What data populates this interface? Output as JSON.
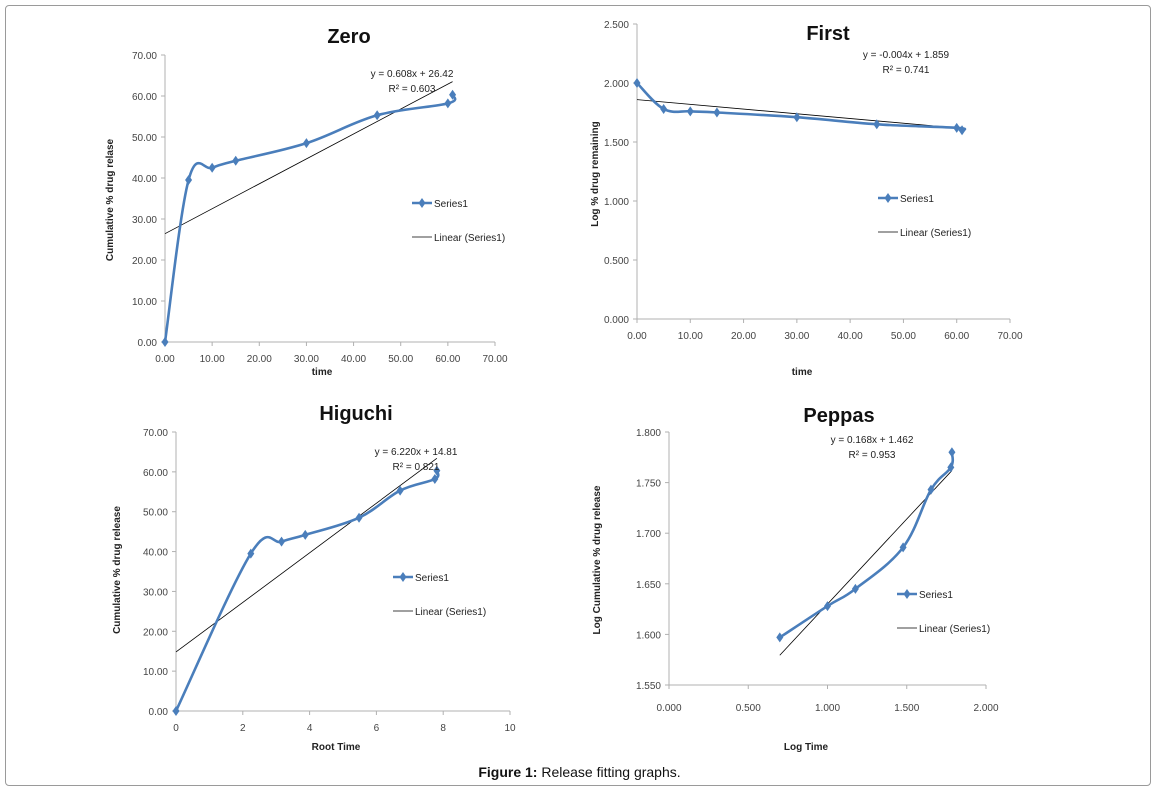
{
  "caption": {
    "label": "Figure 1:",
    "text": " Release fitting graphs."
  },
  "colors": {
    "series": "#4a7ebb",
    "trend": "#000000",
    "axis": "#b0b0b0"
  },
  "chart_data": [
    {
      "type": "line",
      "title": "Zero",
      "xlabel": "time",
      "ylabel": "Cumulative % drug relase",
      "xlim": [
        0,
        70
      ],
      "ylim": [
        0,
        70
      ],
      "xticks": [
        "0.00",
        "10.00",
        "20.00",
        "30.00",
        "40.00",
        "50.00",
        "60.00",
        "70.00"
      ],
      "yticks": [
        "0.00",
        "10.00",
        "20.00",
        "30.00",
        "40.00",
        "50.00",
        "60.00",
        "70.00"
      ],
      "series": [
        {
          "name": "Series1",
          "x": [
            0,
            5,
            10,
            15,
            30,
            45,
            60,
            61
          ],
          "y": [
            0,
            39.5,
            42.5,
            44.2,
            48.5,
            55.3,
            58.2,
            60.3
          ]
        }
      ],
      "trendline": {
        "name": "Linear (Series1)",
        "slope": 0.608,
        "intercept": 26.42,
        "equation": "y = 0.608x + 26.42",
        "r2": "R² = 0.603"
      },
      "legend": "right"
    },
    {
      "type": "line",
      "title": "First",
      "xlabel": "time",
      "ylabel": "Log % drug remaining",
      "xlim": [
        0,
        70
      ],
      "ylim": [
        0,
        2.5
      ],
      "xticks": [
        "0.00",
        "10.00",
        "20.00",
        "30.00",
        "40.00",
        "50.00",
        "60.00",
        "70.00"
      ],
      "yticks": [
        "0.000",
        "0.500",
        "1.000",
        "1.500",
        "2.000",
        "2.500"
      ],
      "series": [
        {
          "name": "Series1",
          "x": [
            0,
            5,
            10,
            15,
            30,
            45,
            60,
            61
          ],
          "y": [
            2.0,
            1.78,
            1.76,
            1.75,
            1.71,
            1.65,
            1.62,
            1.6
          ]
        }
      ],
      "trendline": {
        "name": "Linear (Series1)",
        "slope": -0.004,
        "intercept": 1.859,
        "equation": "y = -0.004x + 1.859",
        "r2": "R² = 0.741"
      },
      "legend": "right"
    },
    {
      "type": "line",
      "title": "Higuchi",
      "xlabel": "Root Time",
      "ylabel": "Cumulative % drug release",
      "xlim": [
        0,
        10
      ],
      "ylim": [
        0,
        70
      ],
      "xticks": [
        "0",
        "2",
        "4",
        "6",
        "8",
        "10"
      ],
      "yticks": [
        "0.00",
        "10.00",
        "20.00",
        "30.00",
        "40.00",
        "50.00",
        "60.00",
        "70.00"
      ],
      "series": [
        {
          "name": "Series1",
          "x": [
            0,
            2.24,
            3.16,
            3.87,
            5.48,
            6.71,
            7.75,
            7.81
          ],
          "y": [
            0,
            39.5,
            42.5,
            44.2,
            48.5,
            55.3,
            58.2,
            60.3
          ]
        }
      ],
      "trendline": {
        "name": "Linear (Series1)",
        "slope": 6.22,
        "intercept": 14.81,
        "equation": "y = 6.220x + 14.81",
        "r2": "R² = 0.821"
      },
      "legend": "right"
    },
    {
      "type": "line",
      "title": "Peppas",
      "xlabel": "Log Time",
      "ylabel": "Log Cumulative % drug release",
      "xlim": [
        0,
        2
      ],
      "ylim": [
        1.55,
        1.8
      ],
      "xticks": [
        "0.000",
        "0.500",
        "1.000",
        "1.500",
        "2.000"
      ],
      "yticks": [
        "1.550",
        "1.600",
        "1.650",
        "1.700",
        "1.750",
        "1.800"
      ],
      "series": [
        {
          "name": "Series1",
          "x": [
            0.699,
            1.0,
            1.176,
            1.477,
            1.653,
            1.778,
            1.785
          ],
          "y": [
            1.597,
            1.628,
            1.645,
            1.686,
            1.743,
            1.765,
            1.78
          ]
        }
      ],
      "trendline": {
        "name": "Linear (Series1)",
        "slope": 0.168,
        "intercept": 1.462,
        "equation": "y = 0.168x + 1.462",
        "r2": "R² = 0.953"
      },
      "legend": "right"
    }
  ]
}
